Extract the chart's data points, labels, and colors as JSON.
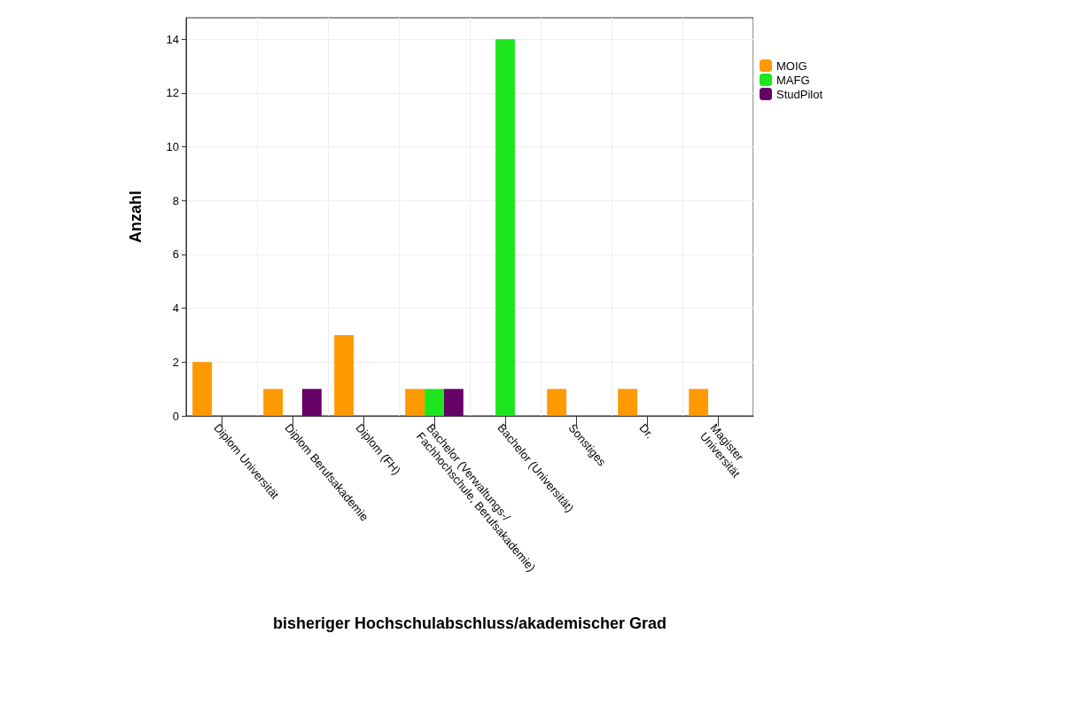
{
  "chart_data": {
    "type": "bar",
    "xlabel": "bisheriger Hochschulabschluss/akademischer Grad",
    "ylabel": "Anzahl",
    "categories": [
      "Diplom Universität",
      "Diplom Berufsakademie",
      "Diplom (FH)",
      "Bachelor (Verwaltungs-/\nFachhochschule, Berufsakademie)",
      "Bachelor (Universität)",
      "Sonstiges",
      "Dr.",
      "Magister\nUniversität"
    ],
    "series": [
      {
        "name": "MOIG",
        "color": "#ff9900",
        "values": [
          2,
          1,
          3,
          1,
          0,
          1,
          1,
          1
        ]
      },
      {
        "name": "MAFG",
        "color": "#1ee61e",
        "values": [
          0,
          0,
          0,
          1,
          14,
          0,
          0,
          0
        ]
      },
      {
        "name": "StudPilot",
        "color": "#660066",
        "values": [
          0,
          1,
          0,
          1,
          0,
          0,
          0,
          0
        ]
      }
    ],
    "ylim": [
      0,
      14.8
    ],
    "yticks": [
      0,
      2,
      4,
      6,
      8,
      10,
      12,
      14
    ],
    "grid": true,
    "legend": "top right"
  }
}
